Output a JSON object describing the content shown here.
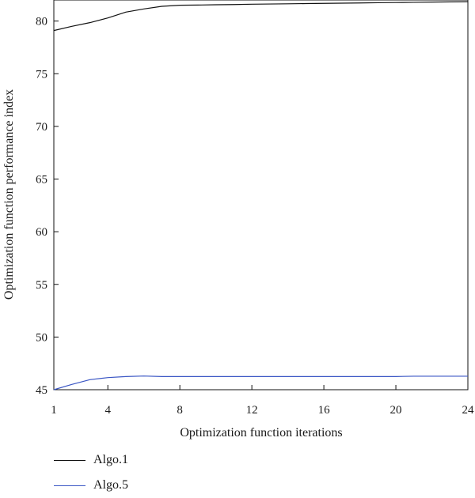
{
  "chart_data": {
    "type": "line",
    "title": "",
    "xlabel": "Optimization function iterations",
    "ylabel": "Optimization function performance index",
    "xlim": [
      1,
      24
    ],
    "ylim": [
      45,
      82
    ],
    "xticks": [
      1,
      4,
      8,
      12,
      16,
      20,
      24
    ],
    "yticks": [
      45,
      50,
      55,
      60,
      65,
      70,
      75,
      80
    ],
    "grid": false,
    "legend_position": "bottom-left",
    "series": [
      {
        "name": "Algo.1",
        "color": "#111111",
        "x": [
          1,
          2,
          3,
          4,
          5,
          6,
          7,
          8,
          9,
          10,
          11,
          12,
          13,
          14,
          15,
          16,
          17,
          18,
          19,
          20,
          21,
          22,
          23,
          24
        ],
        "y": [
          79.1,
          79.5,
          79.85,
          80.3,
          80.85,
          81.15,
          81.4,
          81.5,
          81.52,
          81.55,
          81.57,
          81.6,
          81.62,
          81.64,
          81.66,
          81.68,
          81.7,
          81.72,
          81.74,
          81.76,
          81.78,
          81.8,
          81.82,
          81.84
        ]
      },
      {
        "name": "Algo.5",
        "color": "#3a56c4",
        "x": [
          1,
          2,
          3,
          4,
          5,
          6,
          7,
          8,
          9,
          10,
          11,
          12,
          13,
          14,
          15,
          16,
          17,
          18,
          19,
          20,
          21,
          22,
          23,
          24
        ],
        "y": [
          45.0,
          45.5,
          45.95,
          46.15,
          46.25,
          46.3,
          46.25,
          46.25,
          46.25,
          46.25,
          46.25,
          46.25,
          46.25,
          46.25,
          46.25,
          46.25,
          46.25,
          46.25,
          46.25,
          46.25,
          46.28,
          46.28,
          46.28,
          46.28
        ]
      }
    ]
  }
}
